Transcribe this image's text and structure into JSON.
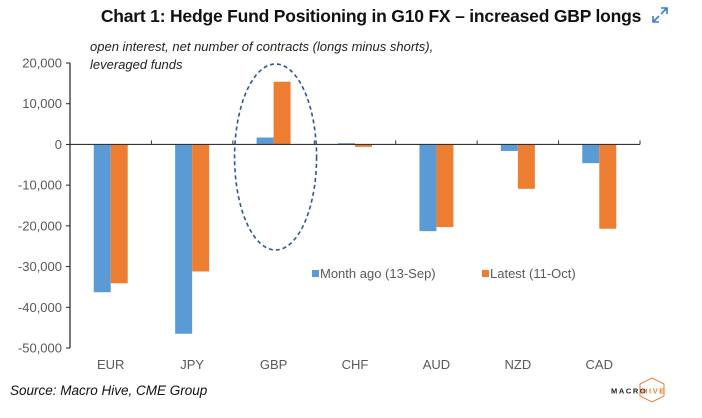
{
  "header": {
    "title": "Chart 1: Hedge Fund Positioning in G10 FX – increased GBP longs",
    "expand_icon": "expand-arrows-icon",
    "subtitle_line1": "open interest, net number of contracts (longs minus shorts),",
    "subtitle_line2": "leveraged funds"
  },
  "footer": {
    "source": "Source: Macro Hive, CME Group",
    "logo_left": "MACRO",
    "logo_right": "HIVE"
  },
  "colors": {
    "series_month_ago": "#5B9BD5",
    "series_latest": "#ED7D31",
    "highlight_ellipse": "#2F5597",
    "logo_accent": "#ED7D31"
  },
  "chart_data": {
    "type": "bar",
    "title": "Chart 1: Hedge Fund Positioning in G10 FX – increased GBP longs",
    "subtitle": "open interest, net number of contracts (longs minus shorts), leveraged funds",
    "xlabel": "",
    "ylabel": "",
    "categories": [
      "EUR",
      "JPY",
      "GBP",
      "CHF",
      "AUD",
      "NZD",
      "CAD"
    ],
    "series": [
      {
        "name": "Month ago (13-Sep)",
        "values": [
          -36300,
          -46500,
          1700,
          300,
          -21300,
          -1600,
          -4600
        ]
      },
      {
        "name": "Latest (11-Oct)",
        "values": [
          -34100,
          -31200,
          15400,
          -600,
          -20300,
          -10900,
          -20700
        ]
      }
    ],
    "ylim": [
      -50000,
      20000
    ],
    "yticks": [
      20000,
      10000,
      0,
      -10000,
      -20000,
      -30000,
      -40000,
      -50000
    ],
    "ytick_labels": [
      "20,000",
      "10,000",
      "0",
      "-10,000",
      "-20,000",
      "-30,000",
      "-40,000",
      "-50,000"
    ],
    "grid": false,
    "legend_position": "lower-center inside plot",
    "annotations": [
      {
        "type": "dashed-ellipse",
        "target_category": "GBP",
        "note": "highlight increased GBP longs"
      }
    ],
    "source": "Source: Macro Hive, CME Group"
  }
}
